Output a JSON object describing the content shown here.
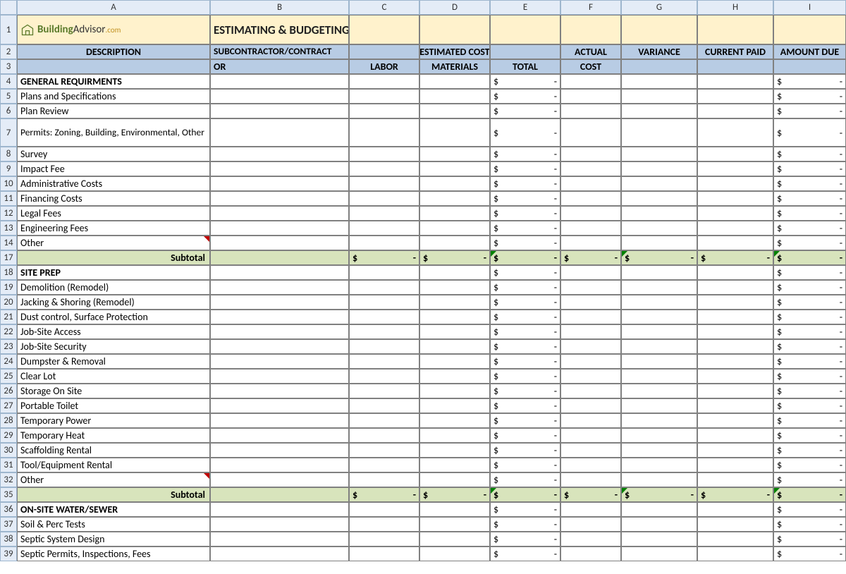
{
  "columns": [
    "A",
    "B",
    "C",
    "D",
    "E",
    "F",
    "G",
    "H",
    "I"
  ],
  "logo": {
    "brand": "Building",
    "suffix": "Advisor",
    ".com": ".com"
  },
  "title": "ESTIMATING & BUDGETING WORKSHEET",
  "headers": {
    "description": "DESCRIPTION",
    "subcontractor": "SUBCONTRACTOR/CONTRACTOR",
    "estimated": "ESTIMATED COST",
    "labor": "LABOR",
    "materials": "MATERIALS",
    "total": "TOTAL",
    "actual": "ACTUAL COST",
    "variance": "VARIANCE",
    "current_paid": "CURRENT PAID",
    "amount_due": "AMOUNT DUE"
  },
  "subtotal_label": "Subtotal",
  "colors": {
    "col_header_bg": "#e4ecf7",
    "col_header_border": "#9eb6ce",
    "title_bg": "#fff2cc",
    "header_bg": "#b8cce4",
    "subtotal_bg": "#d8e4bc",
    "cell_border": "#808080",
    "comment_red": "#c00000",
    "error_green": "#008000"
  },
  "rows": [
    {
      "n": 4,
      "type": "section",
      "desc": "GENERAL REQUIRMENTS",
      "money": true
    },
    {
      "n": 5,
      "type": "item",
      "desc": "Plans and Specifications",
      "money": true
    },
    {
      "n": 6,
      "type": "item",
      "desc": "Plan Review",
      "money": true
    },
    {
      "n": 7,
      "type": "item",
      "desc": "Permits: Zoning, Building, Environmental, Other",
      "money": true,
      "tall": true
    },
    {
      "n": 8,
      "type": "item",
      "desc": "Survey",
      "money": true
    },
    {
      "n": 9,
      "type": "item",
      "desc": "Impact Fee",
      "money": true
    },
    {
      "n": 10,
      "type": "item",
      "desc": "Administrative Costs",
      "money": true
    },
    {
      "n": 11,
      "type": "item",
      "desc": "Financing Costs",
      "money": true
    },
    {
      "n": 12,
      "type": "item",
      "desc": "Legal Fees",
      "money": true
    },
    {
      "n": 13,
      "type": "item",
      "desc": "Engineering Fees",
      "money": true
    },
    {
      "n": 14,
      "type": "item",
      "desc": "Other",
      "money": true,
      "red": true
    },
    {
      "n": 17,
      "type": "subtotal",
      "desc": "Subtotal"
    },
    {
      "n": 18,
      "type": "section",
      "desc": "SITE PREP",
      "money": true
    },
    {
      "n": 19,
      "type": "item",
      "desc": "Demolition (Remodel)",
      "money": true
    },
    {
      "n": 20,
      "type": "item",
      "desc": "Jacking & Shoring (Remodel)",
      "money": true
    },
    {
      "n": 21,
      "type": "item",
      "desc": "Dust control, Surface Protection",
      "money": true
    },
    {
      "n": 22,
      "type": "item",
      "desc": "Job-Site Access",
      "money": true
    },
    {
      "n": 23,
      "type": "item",
      "desc": "Job-Site Security",
      "money": true
    },
    {
      "n": 24,
      "type": "item",
      "desc": "Dumpster & Removal",
      "money": true
    },
    {
      "n": 25,
      "type": "item",
      "desc": "Clear Lot",
      "money": true
    },
    {
      "n": 26,
      "type": "item",
      "desc": "Storage On Site",
      "money": true
    },
    {
      "n": 27,
      "type": "item",
      "desc": "Portable Toilet",
      "money": true
    },
    {
      "n": 28,
      "type": "item",
      "desc": "Temporary Power",
      "money": true
    },
    {
      "n": 29,
      "type": "item",
      "desc": "Temporary Heat",
      "money": true
    },
    {
      "n": 30,
      "type": "item",
      "desc": "Scaffolding Rental",
      "money": true
    },
    {
      "n": 31,
      "type": "item",
      "desc": "Tool/Equipment Rental",
      "money": true
    },
    {
      "n": 32,
      "type": "item",
      "desc": "Other",
      "money": true,
      "red": true
    },
    {
      "n": 35,
      "type": "subtotal",
      "desc": "Subtotal"
    },
    {
      "n": 36,
      "type": "section",
      "desc": "ON-SITE WATER/SEWER",
      "money": true
    },
    {
      "n": 37,
      "type": "item",
      "desc": "Soil & Perc Tests",
      "money": true
    },
    {
      "n": 38,
      "type": "item",
      "desc": "Septic System Design",
      "money": true
    },
    {
      "n": 39,
      "type": "item",
      "desc": "Septic Permits, Inspections, Fees",
      "money": true
    }
  ]
}
